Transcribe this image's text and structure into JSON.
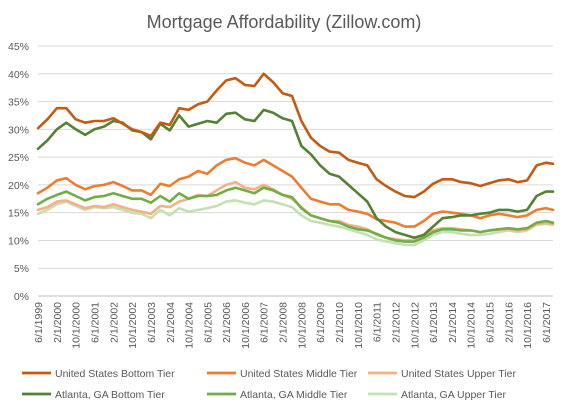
{
  "chart_data": {
    "type": "line",
    "title": "Mortgage Affordability (Zillow.com)",
    "xlabel": "",
    "ylabel": "",
    "ylim": [
      0,
      45
    ],
    "yticks": [
      "0%",
      "5%",
      "10%",
      "15%",
      "20%",
      "25%",
      "30%",
      "35%",
      "40%",
      "45%"
    ],
    "xticks": [
      "6/1/1999",
      "2/1/2000",
      "10/1/2000",
      "6/1/2001",
      "2/1/2002",
      "10/1/2002",
      "6/1/2003",
      "2/1/2004",
      "10/1/2004",
      "6/1/2005",
      "2/1/2006",
      "10/1/2006",
      "6/1/2007",
      "2/1/2008",
      "10/1/2008",
      "6/1/2009",
      "2/1/2010",
      "10/1/2010",
      "6/1/2011",
      "2/1/2012",
      "10/1/2012",
      "6/1/2013",
      "2/1/2014",
      "10/1/2014",
      "6/1/2015",
      "2/1/2016",
      "10/1/2016",
      "6/1/2017"
    ],
    "x": [
      "6/1/1999",
      "10/1/1999",
      "2/1/2000",
      "6/1/2000",
      "10/1/2000",
      "2/1/2001",
      "6/1/2001",
      "10/1/2001",
      "2/1/2002",
      "6/1/2002",
      "10/1/2002",
      "2/1/2003",
      "6/1/2003",
      "10/1/2003",
      "2/1/2004",
      "6/1/2004",
      "10/1/2004",
      "2/1/2005",
      "6/1/2005",
      "10/1/2005",
      "2/1/2006",
      "6/1/2006",
      "10/1/2006",
      "2/1/2007",
      "6/1/2007",
      "10/1/2007",
      "2/1/2008",
      "6/1/2008",
      "10/1/2008",
      "2/1/2009",
      "6/1/2009",
      "10/1/2009",
      "2/1/2010",
      "6/1/2010",
      "10/1/2010",
      "2/1/2011",
      "6/1/2011",
      "10/1/2011",
      "2/1/2012",
      "6/1/2012",
      "10/1/2012",
      "2/1/2013",
      "6/1/2013",
      "10/1/2013",
      "2/1/2014",
      "6/1/2014",
      "10/1/2014",
      "2/1/2015",
      "6/1/2015",
      "10/1/2015",
      "2/1/2016",
      "6/1/2016",
      "10/1/2016",
      "2/1/2017",
      "6/1/2017",
      "9/1/2017"
    ],
    "series": [
      {
        "name": "United States Bottom Tier",
        "color": "#C55A11",
        "values": [
          30.2,
          31.8,
          33.8,
          33.8,
          31.8,
          31.2,
          31.5,
          31.5,
          32.0,
          31.0,
          30.0,
          29.5,
          28.8,
          31.2,
          30.8,
          33.8,
          33.5,
          34.5,
          35.0,
          37.0,
          38.8,
          39.2,
          38.0,
          37.8,
          40.0,
          38.5,
          36.5,
          36.0,
          31.5,
          28.5,
          27.0,
          26.0,
          25.8,
          24.5,
          24.0,
          23.5,
          21.0,
          19.8,
          18.8,
          18.0,
          17.8,
          18.8,
          20.2,
          21.0,
          21.0,
          20.5,
          20.3,
          19.8,
          20.3,
          20.8,
          21.0,
          20.5,
          20.8,
          23.5,
          24.0,
          23.8
        ]
      },
      {
        "name": "United States Middle Tier",
        "color": "#ED7D31",
        "values": [
          18.5,
          19.5,
          20.8,
          21.2,
          20.0,
          19.2,
          19.8,
          20.0,
          20.5,
          19.8,
          19.0,
          19.0,
          18.2,
          20.2,
          19.8,
          21.0,
          21.5,
          22.5,
          22.0,
          23.5,
          24.5,
          24.8,
          24.0,
          23.5,
          24.5,
          23.5,
          22.5,
          21.5,
          19.5,
          17.5,
          17.0,
          16.5,
          16.5,
          15.5,
          15.2,
          14.8,
          13.8,
          13.5,
          13.2,
          12.5,
          12.5,
          13.5,
          14.8,
          15.2,
          15.0,
          14.8,
          14.5,
          14.0,
          14.5,
          14.8,
          14.5,
          14.2,
          14.5,
          15.5,
          15.8,
          15.5
        ]
      },
      {
        "name": "United States Upper Tier",
        "color": "#F4B183",
        "values": [
          15.5,
          16.0,
          17.0,
          17.2,
          16.5,
          15.8,
          16.2,
          16.0,
          16.5,
          16.0,
          15.5,
          15.2,
          14.8,
          16.2,
          16.0,
          17.0,
          17.5,
          18.2,
          18.0,
          19.0,
          20.0,
          20.5,
          19.5,
          19.2,
          20.0,
          19.2,
          18.2,
          17.5,
          16.0,
          14.5,
          14.0,
          13.5,
          13.5,
          12.8,
          12.5,
          12.0,
          11.0,
          10.5,
          10.2,
          10.0,
          10.0,
          10.8,
          11.8,
          12.2,
          12.2,
          12.0,
          11.8,
          11.5,
          11.8,
          12.0,
          12.0,
          11.8,
          12.0,
          13.0,
          13.2,
          13.0
        ]
      },
      {
        "name": "Atlanta, GA Bottom Tier",
        "color": "#548235",
        "values": [
          26.5,
          28.0,
          30.0,
          31.2,
          30.0,
          29.0,
          30.0,
          30.5,
          31.5,
          31.2,
          29.8,
          29.5,
          28.2,
          31.0,
          29.8,
          32.5,
          30.5,
          31.0,
          31.5,
          31.2,
          32.8,
          33.0,
          31.8,
          31.5,
          33.5,
          33.0,
          32.0,
          31.5,
          27.0,
          25.5,
          23.5,
          22.0,
          21.5,
          20.0,
          18.5,
          17.0,
          14.0,
          12.5,
          11.5,
          11.0,
          10.5,
          11.0,
          12.5,
          14.0,
          14.2,
          14.5,
          14.5,
          14.8,
          15.0,
          15.5,
          15.5,
          15.2,
          15.5,
          18.0,
          18.8,
          18.8
        ]
      },
      {
        "name": "Atlanta, GA Middle Tier",
        "color": "#70AD47",
        "values": [
          16.5,
          17.5,
          18.2,
          18.8,
          18.0,
          17.2,
          17.8,
          18.0,
          18.5,
          18.0,
          17.5,
          17.5,
          16.8,
          18.0,
          17.0,
          18.5,
          17.5,
          18.0,
          18.0,
          18.2,
          19.0,
          19.5,
          19.0,
          18.5,
          19.5,
          19.0,
          18.2,
          17.8,
          15.8,
          14.5,
          14.0,
          13.5,
          13.2,
          12.5,
          12.0,
          11.8,
          11.2,
          10.5,
          10.0,
          9.8,
          9.8,
          10.5,
          11.5,
          12.0,
          12.0,
          11.8,
          11.8,
          11.5,
          11.8,
          12.0,
          12.2,
          12.0,
          12.2,
          13.2,
          13.5,
          13.2
        ]
      },
      {
        "name": "Atlanta, GA Upper Tier",
        "color": "#C5E0B4",
        "values": [
          14.8,
          15.5,
          16.5,
          17.0,
          16.2,
          15.5,
          16.0,
          15.8,
          16.0,
          15.5,
          15.0,
          14.8,
          14.0,
          15.5,
          14.5,
          15.8,
          15.2,
          15.5,
          15.8,
          16.2,
          17.0,
          17.2,
          16.8,
          16.5,
          17.2,
          17.0,
          16.5,
          16.0,
          14.5,
          13.5,
          13.2,
          12.8,
          12.5,
          12.0,
          11.5,
          11.0,
          10.2,
          9.8,
          9.5,
          9.2,
          9.2,
          10.0,
          11.0,
          11.5,
          11.5,
          11.2,
          11.0,
          11.0,
          11.2,
          11.5,
          11.8,
          11.5,
          11.8,
          12.8,
          13.0,
          12.8
        ]
      }
    ],
    "grid": true,
    "legend": "bottom"
  }
}
